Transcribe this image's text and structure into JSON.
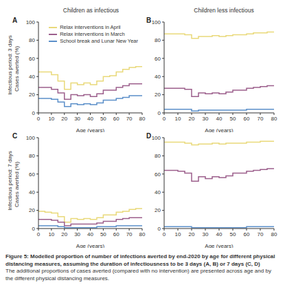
{
  "column_titles": [
    "Children as infectious",
    "Children less infectious"
  ],
  "row_titles": [
    "Infectious period: 3 days",
    "Infectious period: 7 days"
  ],
  "caption": {
    "title": "Figure 5: Modelled proportion of number of infections averted by end-2020 by age for different physical distancing measures, assuming the duration of infectiousness to be 3 days (A, B) or 7 days (C, D)",
    "text": "The additional proportions of cases averted (compared with no intervention) are presented across age and by the different physical distancing measures."
  },
  "chart_data": [
    {
      "type": "line",
      "title": "A",
      "x_label": "Age (years)",
      "y_label": "Cases averted (%)",
      "line_style": "step",
      "legend": "upper right",
      "xlim": [
        0,
        80
      ],
      "xticks": [
        0,
        10,
        20,
        30,
        40,
        50,
        60,
        70,
        80
      ],
      "ylim": [
        0,
        100
      ],
      "yticks": [
        0,
        20,
        40,
        60,
        80,
        100
      ],
      "x": [
        0,
        5,
        10,
        15,
        20,
        25,
        30,
        35,
        40,
        45,
        50,
        55,
        60,
        65,
        70,
        75,
        80
      ],
      "series": [
        {
          "name": "Relax interventions in April",
          "color": "#e9d97a",
          "values": [
            45,
            45,
            42,
            35,
            26,
            33,
            31,
            33,
            31,
            35,
            40,
            41,
            45,
            48,
            50,
            51,
            51
          ]
        },
        {
          "name": "Relax interventions in March",
          "color": "#9c5f8c",
          "values": [
            28,
            28,
            26,
            22,
            15,
            20,
            19,
            20,
            18,
            21,
            25,
            25,
            28,
            30,
            32,
            32,
            32
          ]
        },
        {
          "name": "School break and Lunar New Year",
          "color": "#5b8fc9",
          "values": [
            16,
            16,
            15,
            12,
            7,
            10,
            9,
            10,
            9,
            11,
            14,
            14,
            16,
            17,
            19,
            19,
            19
          ]
        }
      ]
    },
    {
      "type": "line",
      "title": "B",
      "x_label": "Age (years)",
      "line_style": "step",
      "xlim": [
        0,
        80
      ],
      "xticks": [
        0,
        10,
        20,
        30,
        40,
        50,
        60,
        70,
        80
      ],
      "ylim": [
        0,
        100
      ],
      "yticks": [
        0,
        20,
        40,
        60,
        80,
        100
      ],
      "x": [
        0,
        5,
        10,
        15,
        20,
        25,
        30,
        35,
        40,
        45,
        50,
        55,
        60,
        65,
        70,
        75,
        80
      ],
      "series": [
        {
          "name": "Relax interventions in April",
          "color": "#e9d97a",
          "values": [
            87,
            87,
            87,
            86,
            82,
            84,
            84,
            85,
            84,
            85,
            86,
            86,
            87,
            88,
            88,
            89,
            89
          ]
        },
        {
          "name": "Relax interventions in March",
          "color": "#9c5f8c",
          "values": [
            27,
            27,
            27,
            26,
            18,
            22,
            21,
            22,
            21,
            23,
            25,
            25,
            27,
            28,
            29,
            30,
            30
          ]
        },
        {
          "name": "School break and Lunar New Year",
          "color": "#5b8fc9",
          "values": [
            4,
            4,
            4,
            4,
            2,
            3,
            3,
            3,
            3,
            3,
            3,
            3,
            4,
            4,
            4,
            4,
            4
          ]
        }
      ]
    },
    {
      "type": "line",
      "title": "C",
      "x_label": "Age (years)",
      "y_label": "Cases averted (%)",
      "line_style": "step",
      "xlim": [
        0,
        80
      ],
      "xticks": [
        0,
        10,
        20,
        30,
        40,
        50,
        60,
        70,
        80
      ],
      "ylim": [
        0,
        100
      ],
      "yticks": [
        0,
        20,
        40,
        60,
        80,
        100
      ],
      "x": [
        0,
        5,
        10,
        15,
        20,
        25,
        30,
        35,
        40,
        45,
        50,
        55,
        60,
        65,
        70,
        75,
        80
      ],
      "series": [
        {
          "name": "Relax interventions in April",
          "color": "#e9d97a",
          "values": [
            19,
            18,
            17,
            13,
            7,
            11,
            10,
            11,
            10,
            12,
            15,
            15,
            18,
            19,
            21,
            22,
            22
          ]
        },
        {
          "name": "Relax interventions in March",
          "color": "#9c5f8c",
          "values": [
            10,
            10,
            9,
            7,
            3,
            5,
            5,
            5,
            5,
            6,
            8,
            8,
            10,
            11,
            12,
            12,
            12
          ]
        },
        {
          "name": "School break and Lunar New Year",
          "color": "#5b8fc9",
          "values": [
            3,
            3,
            3,
            2,
            1,
            1,
            1,
            1,
            1,
            2,
            2,
            2,
            3,
            3,
            3,
            3,
            3
          ]
        }
      ]
    },
    {
      "type": "line",
      "title": "D",
      "x_label": "Age (years)",
      "line_style": "step",
      "xlim": [
        0,
        80
      ],
      "xticks": [
        0,
        10,
        20,
        30,
        40,
        50,
        60,
        70,
        80
      ],
      "ylim": [
        0,
        100
      ],
      "yticks": [
        0,
        20,
        40,
        60,
        80,
        100
      ],
      "x": [
        0,
        5,
        10,
        15,
        20,
        25,
        30,
        35,
        40,
        45,
        50,
        55,
        60,
        65,
        70,
        75,
        80
      ],
      "series": [
        {
          "name": "Relax interventions in April",
          "color": "#e9d97a",
          "values": [
            95,
            95,
            95,
            94,
            92,
            93,
            93,
            94,
            93,
            94,
            94,
            94,
            95,
            95,
            96,
            96,
            96
          ]
        },
        {
          "name": "Relax interventions in March",
          "color": "#9c5f8c",
          "values": [
            64,
            64,
            63,
            61,
            52,
            57,
            55,
            57,
            56,
            58,
            61,
            61,
            63,
            64,
            65,
            66,
            66
          ]
        },
        {
          "name": "School break and Lunar New Year",
          "color": "#5b8fc9",
          "values": [
            2,
            2,
            2,
            2,
            1,
            1,
            1,
            1,
            1,
            1,
            1,
            1,
            2,
            2,
            2,
            2,
            2
          ]
        }
      ]
    }
  ]
}
